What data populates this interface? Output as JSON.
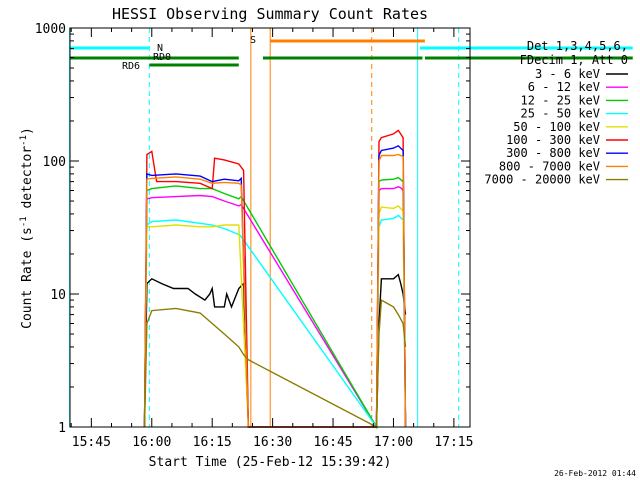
{
  "chart_data": {
    "type": "line",
    "title": "HESSI Observing Summary Count Rates",
    "xlabel": "Start Time (25-Feb-12 15:39:42)",
    "ylabel_main": "Count Rate (s",
    "ylabel_sup1": "-1",
    "ylabel_mid": " detector",
    "ylabel_sup2": "-1",
    "ylabel_end": ")",
    "x_units": "minutes",
    "xlim": [
      "15:39:42",
      "17:19:00"
    ],
    "ylim": [
      1,
      1000
    ],
    "yscale": "log",
    "x_ticks": [
      "15:45",
      "16:00",
      "16:15",
      "16:30",
      "16:45",
      "17:00",
      "17:15"
    ],
    "y_ticks": [
      "1",
      "10",
      "100",
      "1000"
    ],
    "legend": {
      "header1": "Det 1,3,4,5,6,",
      "header2": "FDecim 1, Att 0",
      "placement": "right"
    },
    "series": [
      {
        "name": "3 - 6 keV",
        "color": "#000000",
        "values": [
          [
            15.97,
            1
          ],
          [
            15.98,
            12
          ],
          [
            16.0,
            13
          ],
          [
            16.04,
            12
          ],
          [
            16.09,
            11
          ],
          [
            16.15,
            11
          ],
          [
            16.18,
            10
          ],
          [
            16.22,
            9
          ],
          [
            16.24,
            10
          ],
          [
            16.25,
            11
          ],
          [
            16.26,
            8
          ],
          [
            16.3,
            8
          ],
          [
            16.31,
            10
          ],
          [
            16.33,
            8
          ],
          [
            16.36,
            11
          ],
          [
            16.38,
            12
          ],
          [
            16.4,
            1
          ],
          [
            16.93,
            1
          ],
          [
            16.94,
            6
          ],
          [
            16.95,
            13
          ],
          [
            17.0,
            13
          ],
          [
            17.02,
            14
          ],
          [
            17.03,
            12
          ],
          [
            17.04,
            10
          ],
          [
            17.05,
            7
          ]
        ]
      },
      {
        "name": "6 - 12 keV",
        "color": "#ff00ff",
        "values": [
          [
            15.97,
            1
          ],
          [
            15.98,
            52
          ],
          [
            16.0,
            53
          ],
          [
            16.1,
            54
          ],
          [
            16.2,
            55
          ],
          [
            16.25,
            54
          ],
          [
            16.3,
            50
          ],
          [
            16.36,
            46
          ],
          [
            16.37,
            47
          ],
          [
            16.93,
            1
          ],
          [
            16.94,
            60
          ],
          [
            16.95,
            62
          ],
          [
            17.0,
            62
          ],
          [
            17.02,
            64
          ],
          [
            17.03,
            63
          ],
          [
            17.04,
            60
          ],
          [
            17.05,
            1
          ]
        ]
      },
      {
        "name": "12 - 25 keV",
        "color": "#00cc00",
        "values": [
          [
            15.97,
            1
          ],
          [
            15.98,
            60
          ],
          [
            16.0,
            62
          ],
          [
            16.1,
            65
          ],
          [
            16.2,
            62
          ],
          [
            16.25,
            62
          ],
          [
            16.3,
            57
          ],
          [
            16.36,
            52
          ],
          [
            16.37,
            54
          ],
          [
            16.93,
            1
          ],
          [
            16.94,
            70
          ],
          [
            16.95,
            72
          ],
          [
            17.0,
            73
          ],
          [
            17.02,
            75
          ],
          [
            17.04,
            70
          ],
          [
            17.05,
            1
          ]
        ]
      },
      {
        "name": "25 - 50 keV",
        "color": "#00ffff",
        "values": [
          [
            15.97,
            1
          ],
          [
            15.98,
            33
          ],
          [
            16.0,
            35
          ],
          [
            16.1,
            36
          ],
          [
            16.2,
            34
          ],
          [
            16.25,
            33
          ],
          [
            16.3,
            31
          ],
          [
            16.36,
            28
          ],
          [
            16.37,
            27
          ],
          [
            16.93,
            1
          ],
          [
            16.94,
            32
          ],
          [
            16.95,
            36
          ],
          [
            17.0,
            37
          ],
          [
            17.02,
            39
          ],
          [
            17.04,
            36
          ],
          [
            17.05,
            1
          ]
        ]
      },
      {
        "name": "50 - 100 keV",
        "color": "#e0e000",
        "values": [
          [
            15.97,
            1
          ],
          [
            15.98,
            32
          ],
          [
            16.0,
            32
          ],
          [
            16.1,
            33
          ],
          [
            16.2,
            32
          ],
          [
            16.25,
            32
          ],
          [
            16.3,
            33
          ],
          [
            16.36,
            33
          ],
          [
            16.4,
            1
          ],
          [
            16.93,
            1
          ],
          [
            16.94,
            40
          ],
          [
            16.95,
            45
          ],
          [
            17.0,
            44
          ],
          [
            17.02,
            46
          ],
          [
            17.04,
            42
          ],
          [
            17.05,
            1
          ]
        ]
      },
      {
        "name": "100 - 300 keV",
        "color": "#ff0000",
        "values": [
          [
            15.97,
            1
          ],
          [
            15.98,
            112
          ],
          [
            16.0,
            118
          ],
          [
            16.02,
            70
          ],
          [
            16.1,
            70
          ],
          [
            16.2,
            68
          ],
          [
            16.25,
            62
          ],
          [
            16.26,
            105
          ],
          [
            16.3,
            102
          ],
          [
            16.36,
            95
          ],
          [
            16.38,
            85
          ],
          [
            16.4,
            1
          ],
          [
            16.93,
            1
          ],
          [
            16.94,
            140
          ],
          [
            16.95,
            150
          ],
          [
            17.0,
            160
          ],
          [
            17.02,
            170
          ],
          [
            17.04,
            150
          ],
          [
            17.05,
            1
          ]
        ]
      },
      {
        "name": "300 - 800 keV",
        "color": "#0000ff",
        "values": [
          [
            15.97,
            1
          ],
          [
            15.98,
            80
          ],
          [
            16.0,
            78
          ],
          [
            16.1,
            80
          ],
          [
            16.2,
            77
          ],
          [
            16.25,
            70
          ],
          [
            16.3,
            73
          ],
          [
            16.36,
            71
          ],
          [
            16.37,
            74
          ],
          [
            16.4,
            1
          ],
          [
            16.93,
            1
          ],
          [
            16.94,
            110
          ],
          [
            16.95,
            120
          ],
          [
            17.0,
            125
          ],
          [
            17.02,
            130
          ],
          [
            17.04,
            120
          ],
          [
            17.05,
            1
          ]
        ]
      },
      {
        "name": "800 - 7000 keV",
        "color": "#ff8000",
        "values": [
          [
            15.97,
            1
          ],
          [
            15.98,
            73
          ],
          [
            16.0,
            74
          ],
          [
            16.1,
            76
          ],
          [
            16.2,
            73
          ],
          [
            16.25,
            68
          ],
          [
            16.3,
            69
          ],
          [
            16.36,
            68
          ],
          [
            16.37,
            66
          ],
          [
            16.4,
            1
          ],
          [
            16.93,
            1
          ],
          [
            16.94,
            100
          ],
          [
            16.95,
            110
          ],
          [
            17.0,
            110
          ],
          [
            17.02,
            112
          ],
          [
            17.04,
            108
          ],
          [
            17.05,
            1
          ]
        ]
      },
      {
        "name": "7000 - 20000 keV",
        "color": "#8b7d00",
        "values": [
          [
            15.97,
            1
          ],
          [
            15.98,
            6
          ],
          [
            16.0,
            7.5
          ],
          [
            16.1,
            7.8
          ],
          [
            16.2,
            7.2
          ],
          [
            16.25,
            6
          ],
          [
            16.3,
            5
          ],
          [
            16.36,
            4
          ],
          [
            16.38,
            3.5
          ],
          [
            16.4,
            3.2
          ],
          [
            16.93,
            1
          ],
          [
            16.94,
            5
          ],
          [
            16.95,
            9
          ],
          [
            17.0,
            8
          ],
          [
            17.02,
            7
          ],
          [
            17.04,
            6
          ],
          [
            17.05,
            4
          ]
        ]
      }
    ],
    "flags": [
      {
        "label": "N",
        "color": "#00ffff",
        "segments": [
          [
            15.66,
            15.99
          ],
          [
            17.11,
            17.99
          ]
        ],
        "labeled": true
      },
      {
        "label": "RD0",
        "color": "#008000",
        "segments": [
          [
            15.66,
            16.36
          ],
          [
            16.46,
            17.12
          ],
          [
            17.13,
            17.99
          ]
        ],
        "labeled": true
      },
      {
        "label": "RD6",
        "color": "#008000",
        "segments": [
          [
            15.99,
            16.36
          ]
        ],
        "labeled": true
      },
      {
        "label": "S",
        "color": "#ff8000",
        "segments": [
          [
            16.49,
            17.13
          ]
        ],
        "labeled": true
      }
    ],
    "vlines": [
      {
        "x": 15.66,
        "color": "#00ffff",
        "style": "solid"
      },
      {
        "x": 15.99,
        "color": "#00ffff",
        "style": "dashed"
      },
      {
        "x": 16.41,
        "color": "#ff8000",
        "style": "solid"
      },
      {
        "x": 16.49,
        "color": "#ff8000",
        "style": "solid"
      },
      {
        "x": 16.91,
        "color": "#ff8000",
        "style": "dashed"
      },
      {
        "x": 17.1,
        "color": "#00ffff",
        "style": "solid"
      },
      {
        "x": 17.27,
        "color": "#00ffff",
        "style": "dashed"
      }
    ],
    "footer": "26-Feb-2012 01:44"
  }
}
